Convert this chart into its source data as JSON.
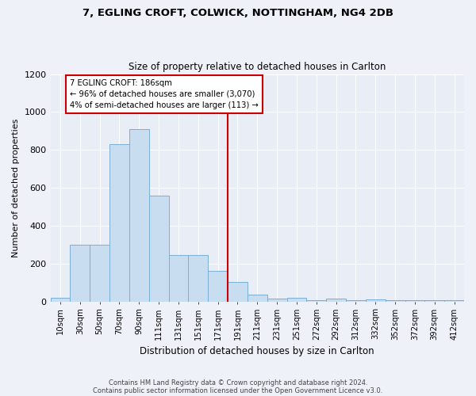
{
  "title": "7, EGLING CROFT, COLWICK, NOTTINGHAM, NG4 2DB",
  "subtitle": "Size of property relative to detached houses in Carlton",
  "xlabel": "Distribution of detached houses by size in Carlton",
  "ylabel": "Number of detached properties",
  "bar_labels": [
    "10sqm",
    "30sqm",
    "50sqm",
    "70sqm",
    "90sqm",
    "111sqm",
    "131sqm",
    "151sqm",
    "171sqm",
    "191sqm",
    "211sqm",
    "231sqm",
    "251sqm",
    "272sqm",
    "292sqm",
    "312sqm",
    "332sqm",
    "352sqm",
    "372sqm",
    "392sqm",
    "412sqm"
  ],
  "bar_values": [
    20,
    300,
    300,
    830,
    910,
    560,
    245,
    245,
    160,
    105,
    38,
    15,
    20,
    5,
    15,
    5,
    10,
    5,
    5,
    5,
    5
  ],
  "bar_color": "#c9ddf0",
  "bar_edge_color": "#7bafd4",
  "property_line_label": "191sqm",
  "property_line_idx": 9,
  "property_line_color": "#cc0000",
  "annotation_title": "7 EGLING CROFT: 186sqm",
  "annotation_line1": "← 96% of detached houses are smaller (3,070)",
  "annotation_line2": "4% of semi-detached houses are larger (113) →",
  "annotation_box_color": "#cc0000",
  "ylim": [
    0,
    1200
  ],
  "yticks": [
    0,
    200,
    400,
    600,
    800,
    1000,
    1200
  ],
  "footer_line1": "Contains HM Land Registry data © Crown copyright and database right 2024.",
  "footer_line2": "Contains public sector information licensed under the Open Government Licence v3.0.",
  "bg_color": "#eef2f8",
  "plot_bg_color": "#e8edf6"
}
